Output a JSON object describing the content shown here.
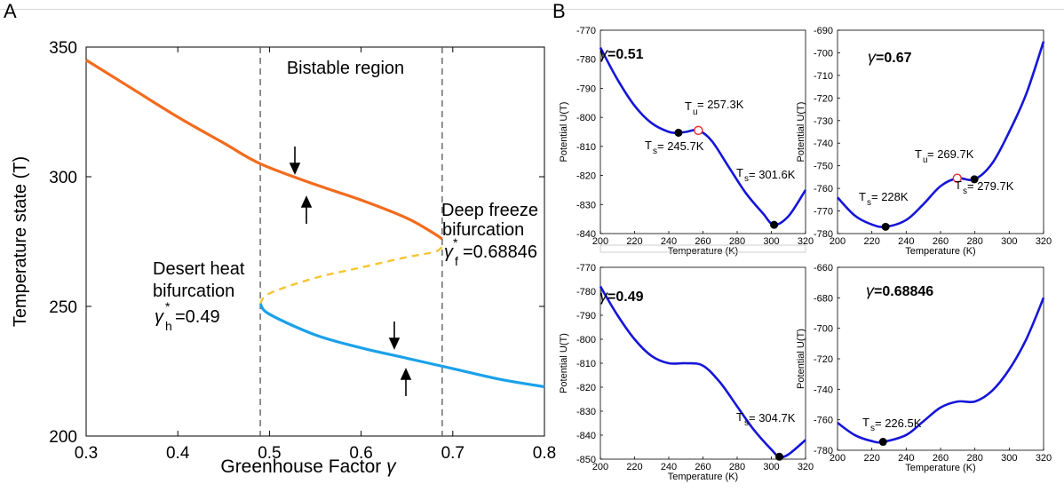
{
  "panel_labels": {
    "a": "A",
    "b": "B"
  },
  "panel_a": {
    "ylabel": "Temperature state (T)",
    "xlabel": "Greenhouse Factor",
    "xlabel_symbol": "γ",
    "region_label": "Bistable region",
    "desert_label_1": "Desert heat",
    "desert_label_2": "bifurcation",
    "desert_value_sym": "γ",
    "desert_value_sub": "h",
    "desert_value": "=0.49",
    "freeze_label_1": "Deep freeze",
    "freeze_label_2": "bifurcation",
    "freeze_value_sym": "γ",
    "freeze_value_sub": "f",
    "freeze_value": "=0.68846",
    "star": "*"
  },
  "subplots": {
    "ylabel": "Potential   U(T)",
    "xlabel": "Temperature (K)",
    "g051": {
      "sym": "γ",
      "val": "=0.51",
      "tu_sub": "u",
      "tu_text": " = 257.3K",
      "ts1_sub": "s",
      "ts1_text": " = 245.7K",
      "ts2_sub": "s",
      "ts2_text": " = 301.6K"
    },
    "g067": {
      "sym": "γ",
      "val": "=0.67",
      "tu_sub": "u",
      "tu_text": " = 269.7K",
      "ts1_sub": "s",
      "ts1_text": " = 228K",
      "ts2_sub": "s",
      "ts2_text": " = 279.7K"
    },
    "g049": {
      "sym": "γ",
      "val": "=0.49",
      "ts_sub": "s",
      "ts_text": " = 304.7K"
    },
    "g068": {
      "sym": "γ",
      "val": "=0.68846",
      "ts_sub": "s",
      "ts_text": " = 226.5K"
    },
    "t_char": "T"
  },
  "colors": {
    "hot": "#F26B1D",
    "unstable": "#F5C531",
    "cold": "#1BA1EA",
    "potential": "#1515D8",
    "unstable_marker": "#E52B2B"
  },
  "chart_data": [
    {
      "type": "line",
      "title": "",
      "xlabel": "Greenhouse Factor γ",
      "ylabel": "Temperature state (T)",
      "xlim": [
        0.3,
        0.8
      ],
      "ylim": [
        200,
        350
      ],
      "xticks": [
        0.3,
        0.4,
        0.5,
        0.6,
        0.7,
        0.8
      ],
      "yticks": [
        200,
        250,
        300,
        350
      ],
      "vlines": [
        0.49,
        0.68846
      ],
      "series": [
        {
          "x": [
            0.3,
            0.35,
            0.4,
            0.45,
            0.49,
            0.55,
            0.6,
            0.65,
            0.68,
            0.68846
          ],
          "values": [
            345,
            334,
            323,
            313,
            305,
            297,
            291,
            284,
            278,
            276
          ]
        },
        {
          "x": [
            0.49,
            0.5,
            0.55,
            0.6,
            0.65,
            0.68,
            0.68846
          ],
          "values": [
            251,
            255,
            261,
            265,
            269,
            271,
            273
          ]
        },
        {
          "x": [
            0.49,
            0.5,
            0.55,
            0.6,
            0.65,
            0.7,
            0.75,
            0.8
          ],
          "values": [
            251,
            247,
            239,
            234,
            230,
            226,
            222,
            219
          ]
        }
      ]
    },
    {
      "type": "line",
      "title": "γ=0.51",
      "xlabel": "Temperature (K)",
      "ylabel": "Potential   U(T)",
      "xlim": [
        200,
        320
      ],
      "ylim": [
        -840,
        -770
      ],
      "xticks": [
        200,
        220,
        240,
        260,
        280,
        300,
        320
      ],
      "yticks": [
        -770,
        -780,
        -790,
        -800,
        -810,
        -820,
        -830,
        -840
      ],
      "series": [
        {
          "x": [
            200,
            210,
            220,
            230,
            240,
            245.7,
            250,
            257.3,
            265,
            275,
            285,
            295,
            301.6,
            310,
            320
          ],
          "values": [
            -776,
            -787,
            -796,
            -802,
            -805,
            -805.3,
            -805,
            -804.5,
            -808,
            -817,
            -826,
            -833,
            -837,
            -834,
            -825
          ]
        }
      ]
    },
    {
      "type": "line",
      "title": "γ=0.67",
      "xlabel": "Temperature (K)",
      "ylabel": "Potential   U(T)",
      "xlim": [
        200,
        320
      ],
      "ylim": [
        -780,
        -690
      ],
      "xticks": [
        200,
        220,
        240,
        260,
        280,
        300,
        320
      ],
      "yticks": [
        -690,
        -700,
        -710,
        -720,
        -730,
        -740,
        -750,
        -760,
        -770,
        -780
      ],
      "series": [
        {
          "x": [
            200,
            210,
            220,
            228,
            240,
            250,
            260,
            269.7,
            279.7,
            290,
            300,
            310,
            320
          ],
          "values": [
            -764,
            -772,
            -776,
            -777,
            -774,
            -767,
            -759,
            -755.5,
            -756,
            -749,
            -735,
            -718,
            -695
          ]
        }
      ]
    },
    {
      "type": "line",
      "title": "γ=0.49",
      "xlabel": "Temperature (K)",
      "ylabel": "Potential   U(T)",
      "xlim": [
        200,
        320
      ],
      "ylim": [
        -850,
        -770
      ],
      "xticks": [
        200,
        220,
        240,
        260,
        280,
        300,
        320
      ],
      "yticks": [
        -770,
        -780,
        -790,
        -800,
        -810,
        -820,
        -830,
        -840,
        -850
      ],
      "series": [
        {
          "x": [
            200,
            210,
            220,
            230,
            240,
            250,
            260,
            270,
            280,
            290,
            300,
            304.7,
            310,
            320
          ],
          "values": [
            -778,
            -790,
            -800,
            -807,
            -810,
            -810,
            -811,
            -818,
            -828,
            -838,
            -846,
            -849,
            -848,
            -842
          ]
        }
      ]
    },
    {
      "type": "line",
      "title": "γ=0.68846",
      "xlabel": "Temperature (K)",
      "ylabel": "Potential   U(T)",
      "xlim": [
        200,
        320
      ],
      "ylim": [
        -780,
        -660
      ],
      "xticks": [
        200,
        220,
        240,
        260,
        280,
        300,
        320
      ],
      "yticks": [
        -660,
        -680,
        -700,
        -720,
        -740,
        -760,
        -780
      ],
      "series": [
        {
          "x": [
            200,
            210,
            220,
            226.5,
            240,
            250,
            260,
            270,
            280,
            290,
            300,
            310,
            320
          ],
          "values": [
            -762,
            -770,
            -774,
            -774.5,
            -770,
            -761,
            -752,
            -748,
            -748,
            -741,
            -727,
            -707,
            -680
          ]
        }
      ]
    }
  ]
}
